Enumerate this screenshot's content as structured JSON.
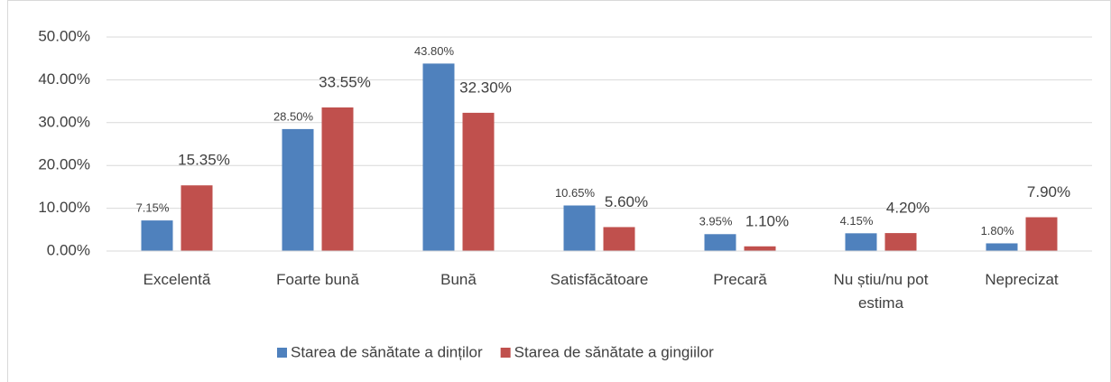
{
  "chart_data": {
    "type": "bar",
    "categories": [
      "Excelentă",
      "Foarte bună",
      "Bună",
      "Satisfăcătoare",
      "Precară",
      "Nu știu/nu pot estima",
      "Neprecizat"
    ],
    "series": [
      {
        "name": "Starea de sănătate a dinților",
        "color": "#4f81bd",
        "values": [
          7.15,
          28.5,
          43.8,
          10.65,
          3.95,
          4.15,
          1.8
        ],
        "value_labels": [
          "7.15%",
          "28.50%",
          "43.80%",
          "10.65%",
          "3.95%",
          "4.15%",
          "1.80%"
        ]
      },
      {
        "name": "Starea de sănătate a gingiilor",
        "color": "#c0504d",
        "values": [
          15.35,
          33.55,
          32.3,
          5.6,
          1.1,
          4.2,
          7.9
        ],
        "value_labels": [
          "15.35%",
          "33.55%",
          "32.30%",
          "5.60%",
          "1.10%",
          "4.20%",
          "7.90%"
        ]
      }
    ],
    "ylim": [
      0,
      50
    ],
    "yticks": [
      {
        "value": 0,
        "label": "0.00%"
      },
      {
        "value": 10,
        "label": "10.00%"
      },
      {
        "value": 20,
        "label": "20.00%"
      },
      {
        "value": 30,
        "label": "30.00%"
      },
      {
        "value": 40,
        "label": "40.00%"
      },
      {
        "value": 50,
        "label": "50.00%"
      }
    ],
    "grid": true,
    "legend": "bottom"
  }
}
